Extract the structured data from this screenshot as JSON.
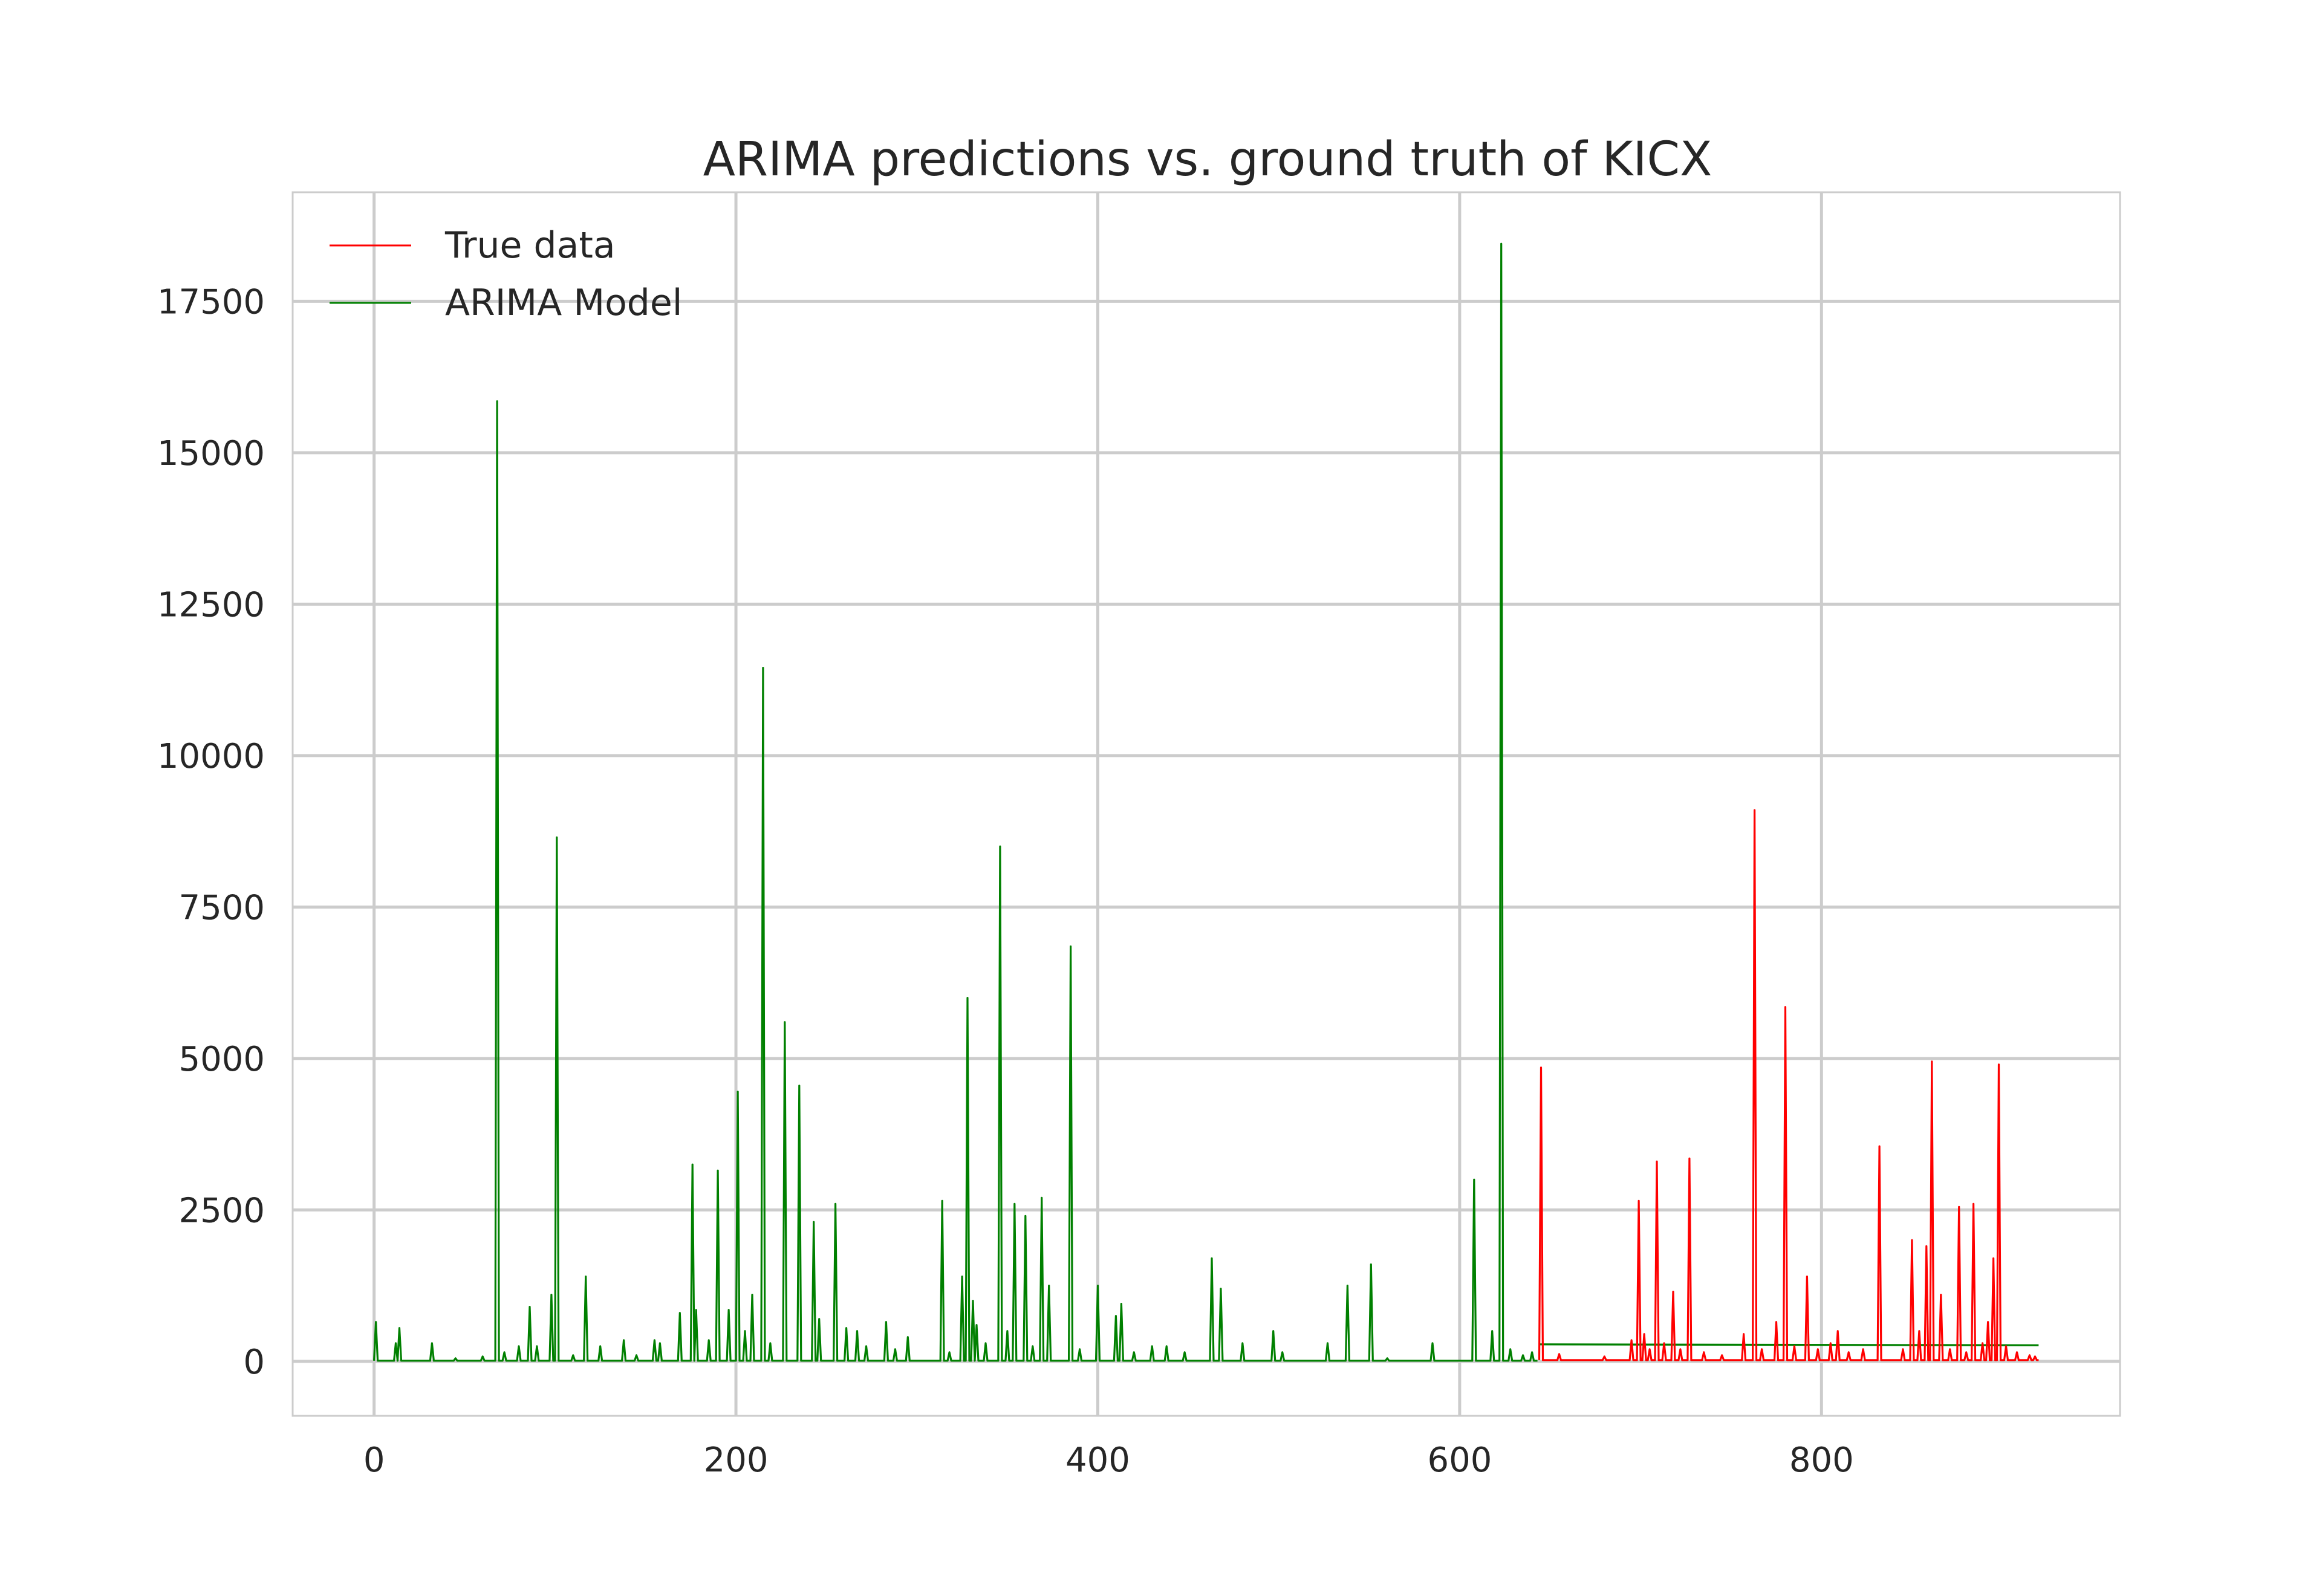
{
  "chart_data": {
    "type": "line",
    "title": "ARIMA predictions vs. ground truth of KICX",
    "xlabel": "",
    "ylabel": "",
    "xlim": [
      -45,
      965
    ],
    "ylim": [
      -900,
      19300
    ],
    "x_ticks": [
      0,
      200,
      400,
      600,
      800
    ],
    "y_ticks": [
      0,
      2500,
      5000,
      7500,
      10000,
      12500,
      15000,
      17500
    ],
    "grid": true,
    "legend_position": "top-left",
    "series": [
      {
        "name": "True data",
        "color": "#ff0000",
        "baseline": 20,
        "x_range": [
          644,
          920
        ],
        "spikes": [
          [
            645,
            4850
          ],
          [
            655,
            120
          ],
          [
            680,
            80
          ],
          [
            695,
            350
          ],
          [
            699,
            2650
          ],
          [
            702,
            450
          ],
          [
            705,
            200
          ],
          [
            709,
            3300
          ],
          [
            713,
            300
          ],
          [
            718,
            1150
          ],
          [
            722,
            200
          ],
          [
            727,
            3350
          ],
          [
            735,
            150
          ],
          [
            745,
            100
          ],
          [
            757,
            450
          ],
          [
            763,
            9100
          ],
          [
            767,
            200
          ],
          [
            775,
            650
          ],
          [
            780,
            5850
          ],
          [
            785,
            250
          ],
          [
            792,
            1400
          ],
          [
            798,
            200
          ],
          [
            805,
            300
          ],
          [
            809,
            500
          ],
          [
            815,
            150
          ],
          [
            823,
            200
          ],
          [
            832,
            3550
          ],
          [
            845,
            200
          ],
          [
            850,
            2000
          ],
          [
            854,
            500
          ],
          [
            858,
            1900
          ],
          [
            861,
            4950
          ],
          [
            866,
            1100
          ],
          [
            871,
            200
          ],
          [
            876,
            2550
          ],
          [
            880,
            150
          ],
          [
            884,
            2600
          ],
          [
            889,
            300
          ],
          [
            892,
            650
          ],
          [
            895,
            1700
          ],
          [
            898,
            4900
          ],
          [
            902,
            250
          ],
          [
            908,
            150
          ],
          [
            915,
            100
          ],
          [
            918,
            80
          ]
        ]
      },
      {
        "name": "ARIMA Model",
        "color": "#008000",
        "baseline": 10,
        "x_range": [
          0,
          643
        ],
        "forecast": {
          "x": [
            644,
            920
          ],
          "values": [
            280,
            265
          ]
        },
        "spikes": [
          [
            1,
            650
          ],
          [
            12,
            300
          ],
          [
            14,
            550
          ],
          [
            32,
            300
          ],
          [
            45,
            50
          ],
          [
            60,
            80
          ],
          [
            68,
            15850
          ],
          [
            72,
            150
          ],
          [
            80,
            250
          ],
          [
            86,
            900
          ],
          [
            90,
            250
          ],
          [
            98,
            1100
          ],
          [
            101,
            8650
          ],
          [
            110,
            100
          ],
          [
            117,
            1400
          ],
          [
            125,
            250
          ],
          [
            138,
            350
          ],
          [
            145,
            100
          ],
          [
            155,
            350
          ],
          [
            158,
            300
          ],
          [
            169,
            800
          ],
          [
            176,
            3250
          ],
          [
            178,
            850
          ],
          [
            185,
            350
          ],
          [
            190,
            3150
          ],
          [
            196,
            850
          ],
          [
            201,
            4450
          ],
          [
            205,
            500
          ],
          [
            209,
            1100
          ],
          [
            215,
            11450
          ],
          [
            219,
            300
          ],
          [
            227,
            5600
          ],
          [
            235,
            4550
          ],
          [
            243,
            2300
          ],
          [
            246,
            700
          ],
          [
            255,
            2600
          ],
          [
            261,
            550
          ],
          [
            267,
            500
          ],
          [
            272,
            250
          ],
          [
            283,
            650
          ],
          [
            288,
            200
          ],
          [
            295,
            400
          ],
          [
            314,
            2650
          ],
          [
            318,
            150
          ],
          [
            325,
            1400
          ],
          [
            328,
            6000
          ],
          [
            331,
            1000
          ],
          [
            333,
            600
          ],
          [
            338,
            300
          ],
          [
            346,
            8500
          ],
          [
            350,
            500
          ],
          [
            354,
            2600
          ],
          [
            360,
            2400
          ],
          [
            364,
            250
          ],
          [
            369,
            2700
          ],
          [
            373,
            1250
          ],
          [
            385,
            6850
          ],
          [
            390,
            200
          ],
          [
            400,
            1250
          ],
          [
            410,
            750
          ],
          [
            413,
            950
          ],
          [
            420,
            150
          ],
          [
            430,
            250
          ],
          [
            438,
            250
          ],
          [
            448,
            150
          ],
          [
            463,
            1700
          ],
          [
            468,
            1200
          ],
          [
            480,
            300
          ],
          [
            497,
            500
          ],
          [
            502,
            150
          ],
          [
            527,
            300
          ],
          [
            538,
            1250
          ],
          [
            551,
            1600
          ],
          [
            560,
            50
          ],
          [
            585,
            300
          ],
          [
            608,
            3000
          ],
          [
            618,
            500
          ],
          [
            623,
            18450
          ],
          [
            628,
            200
          ],
          [
            635,
            100
          ],
          [
            640,
            150
          ]
        ]
      }
    ]
  }
}
